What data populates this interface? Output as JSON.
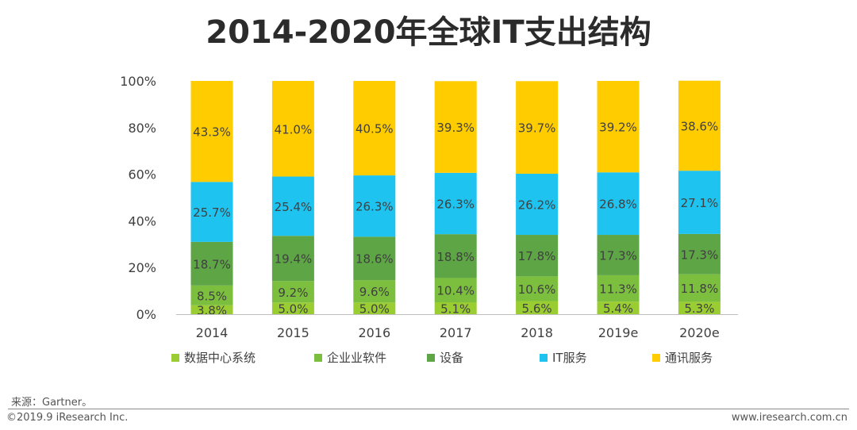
{
  "chart_data": {
    "type": "stacked-bar",
    "title": "2014-2020年全球IT支出结构",
    "categories": [
      "2014",
      "2015",
      "2016",
      "2017",
      "2018",
      "2019e",
      "2020e"
    ],
    "ylim": [
      0,
      100
    ],
    "yticks": [
      "0%",
      "20%",
      "40%",
      "60%",
      "80%",
      "100%"
    ],
    "legend_position": "bottom",
    "series": [
      {
        "name": "数据中心系统",
        "color": "#9ACD32",
        "values": [
          3.8,
          5.0,
          5.0,
          5.1,
          5.6,
          5.4,
          5.3
        ]
      },
      {
        "name": "企业业软件",
        "color": "#7CBF3F",
        "values": [
          8.5,
          9.2,
          9.6,
          10.4,
          10.6,
          11.3,
          11.8
        ]
      },
      {
        "name": "设备",
        "color": "#5DA545",
        "values": [
          18.7,
          19.4,
          18.6,
          18.8,
          17.8,
          17.3,
          17.3
        ]
      },
      {
        "name": "IT服务",
        "color": "#1EC3F0",
        "values": [
          25.7,
          25.4,
          26.3,
          26.3,
          26.2,
          26.8,
          27.1
        ]
      },
      {
        "name": "通讯服务",
        "color": "#FFCC00",
        "values": [
          43.3,
          41.0,
          40.5,
          39.3,
          39.7,
          39.2,
          38.6
        ]
      }
    ]
  },
  "footer": {
    "source": "来源：Gartner。",
    "copyright": "©2019.9 iResearch Inc.",
    "website": "www.iresearch.com.cn"
  }
}
